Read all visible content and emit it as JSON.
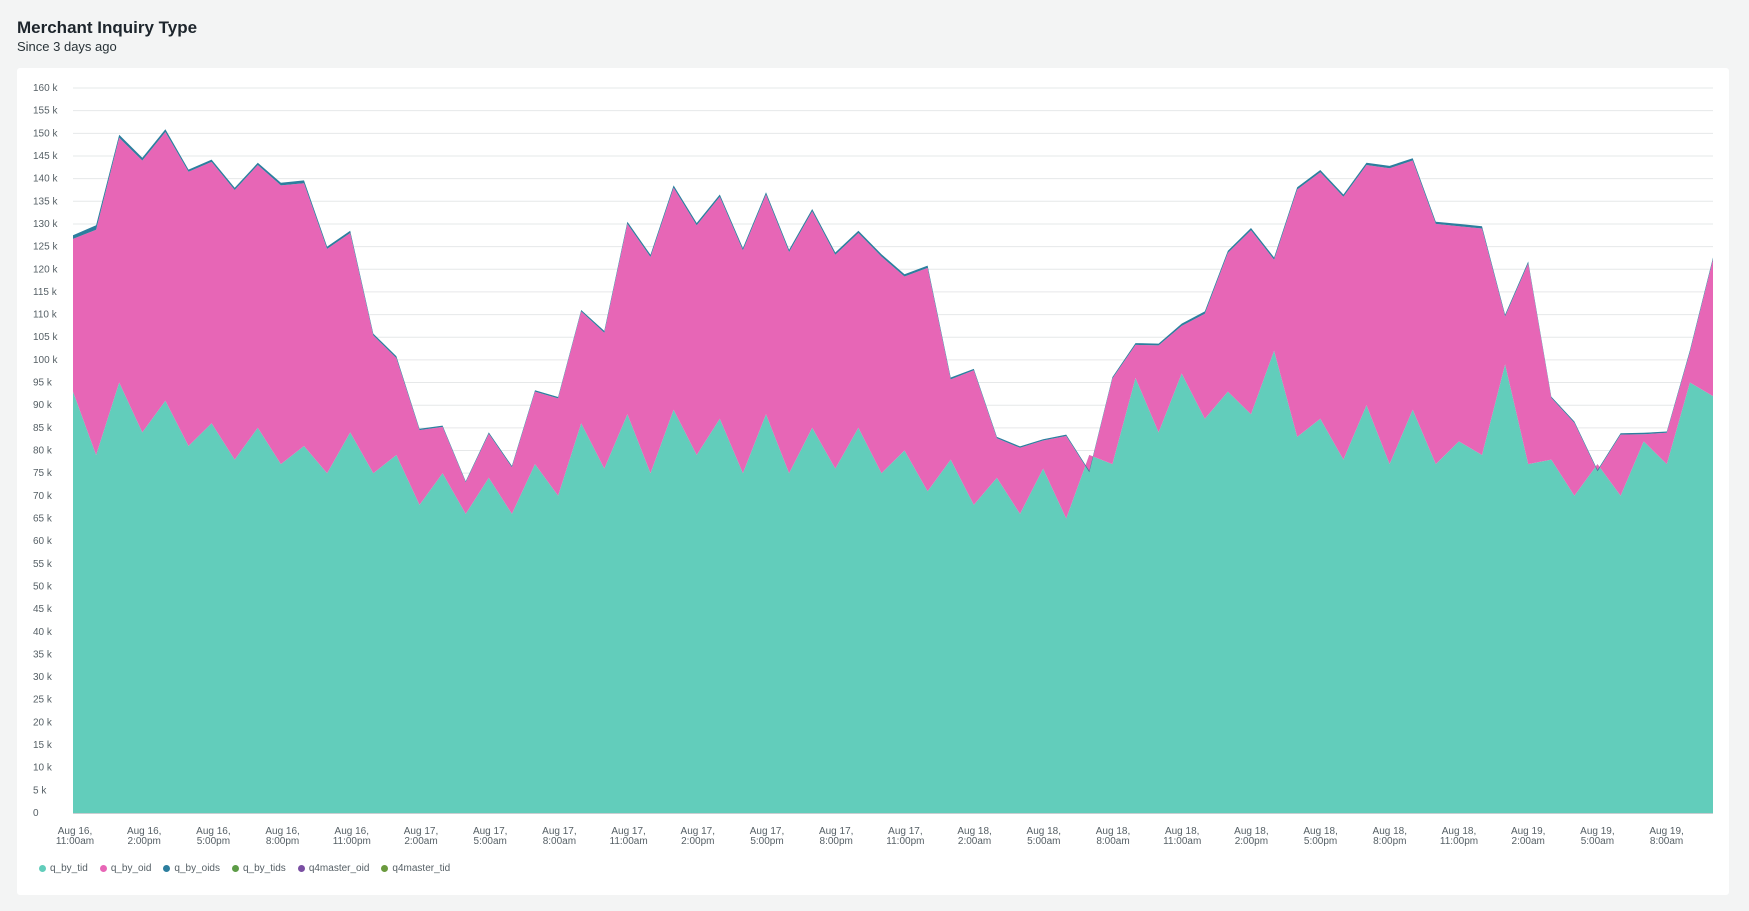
{
  "header": {
    "title": "Merchant Inquiry Type",
    "subtitle": "Since 3 days ago"
  },
  "chart_data": {
    "type": "area",
    "stacked": true,
    "title": "Merchant Inquiry Type",
    "subtitle": "Since 3 days ago",
    "xlabel": "",
    "ylabel": "",
    "ylim": [
      0,
      160000
    ],
    "y_ticks": [
      "0",
      "5 k",
      "10 k",
      "15 k",
      "20 k",
      "25 k",
      "30 k",
      "35 k",
      "40 k",
      "45 k",
      "50 k",
      "55 k",
      "60 k",
      "65 k",
      "70 k",
      "75 k",
      "80 k",
      "85 k",
      "90 k",
      "95 k",
      "100 k",
      "105 k",
      "110 k",
      "115 k",
      "120 k",
      "125 k",
      "130 k",
      "135 k",
      "140 k",
      "145 k",
      "150 k",
      "155 k",
      "160 k"
    ],
    "grid": true,
    "legend_position": "bottom-left",
    "x_ticks": [
      {
        "line1": "Aug 16,",
        "line2": "11:00am"
      },
      {
        "line1": "Aug 16,",
        "line2": "2:00pm"
      },
      {
        "line1": "Aug 16,",
        "line2": "5:00pm"
      },
      {
        "line1": "Aug 16,",
        "line2": "8:00pm"
      },
      {
        "line1": "Aug 16,",
        "line2": "11:00pm"
      },
      {
        "line1": "Aug 17,",
        "line2": "2:00am"
      },
      {
        "line1": "Aug 17,",
        "line2": "5:00am"
      },
      {
        "line1": "Aug 17,",
        "line2": "8:00am"
      },
      {
        "line1": "Aug 17,",
        "line2": "11:00am"
      },
      {
        "line1": "Aug 17,",
        "line2": "2:00pm"
      },
      {
        "line1": "Aug 17,",
        "line2": "5:00pm"
      },
      {
        "line1": "Aug 17,",
        "line2": "8:00pm"
      },
      {
        "line1": "Aug 17,",
        "line2": "11:00pm"
      },
      {
        "line1": "Aug 18,",
        "line2": "2:00am"
      },
      {
        "line1": "Aug 18,",
        "line2": "5:00am"
      },
      {
        "line1": "Aug 18,",
        "line2": "8:00am"
      },
      {
        "line1": "Aug 18,",
        "line2": "11:00am"
      },
      {
        "line1": "Aug 18,",
        "line2": "2:00pm"
      },
      {
        "line1": "Aug 18,",
        "line2": "5:00pm"
      },
      {
        "line1": "Aug 18,",
        "line2": "8:00pm"
      },
      {
        "line1": "Aug 18,",
        "line2": "11:00pm"
      },
      {
        "line1": "Aug 19,",
        "line2": "2:00am"
      },
      {
        "line1": "Aug 19,",
        "line2": "5:00am"
      },
      {
        "line1": "Aug 19,",
        "line2": "8:00am"
      }
    ],
    "series": [
      {
        "name": "q_by_tid",
        "color": "#62cdbb",
        "values": [
          93000,
          79000,
          95000,
          84000,
          91000,
          81000,
          86000,
          78000,
          85000,
          77000,
          81000,
          75000,
          84000,
          75000,
          79000,
          68000,
          75000,
          66000,
          74000,
          66000,
          77000,
          70000,
          86000,
          76000,
          88000,
          75000,
          89000,
          79000,
          87000,
          75000,
          88000,
          75000,
          85000,
          76000,
          85000,
          75000,
          80000,
          71000,
          78000,
          68000,
          74000,
          66000,
          76000,
          65000,
          79000,
          77000,
          96000,
          84000,
          97000,
          87000,
          93000,
          88000,
          102000,
          83000,
          87000,
          78000,
          90000,
          77000,
          89000,
          77000,
          82000,
          79000,
          99000,
          77000,
          78000,
          70000,
          77000,
          70000,
          82000,
          77000,
          95000,
          92000
        ]
      },
      {
        "name": "q_by_oid",
        "color": "#e766b6",
        "values": [
          33700,
          49700,
          54000,
          60000,
          59300,
          60500,
          57700,
          59500,
          58000,
          61500,
          58000,
          49500,
          44000,
          30400,
          21400,
          16500,
          10200,
          7000,
          9700,
          10300,
          16000,
          21500,
          24700,
          30000,
          42000,
          47700,
          49000,
          50700,
          49000,
          49200,
          48500,
          48800,
          47800,
          47200,
          43000,
          47800,
          38400,
          49300,
          17700,
          29700,
          8700,
          14600,
          6200,
          18200,
          -3800,
          18900,
          7300,
          19200,
          10500,
          23200,
          30600,
          40600,
          20100,
          54600,
          54400,
          58000,
          53000,
          65300,
          55000,
          53000,
          47500,
          50000,
          10600,
          44300,
          13600,
          16100,
          -1600,
          13500,
          1600,
          6900,
          6700,
          30200
        ]
      },
      {
        "name": "q_by_oids",
        "color": "#2c7e9e",
        "values": [
          800,
          1000,
          700,
          600,
          600,
          500,
          500,
          500,
          500,
          600,
          600,
          500,
          500,
          400,
          400,
          300,
          300,
          200,
          300,
          300,
          300,
          300,
          300,
          400,
          500,
          500,
          500,
          500,
          500,
          500,
          500,
          500,
          500,
          500,
          500,
          500,
          500,
          500,
          400,
          300,
          300,
          300,
          300,
          300,
          300,
          300,
          400,
          400,
          500,
          500,
          500,
          500,
          500,
          500,
          500,
          500,
          500,
          500,
          500,
          500,
          500,
          500,
          400,
          400,
          300,
          300,
          300,
          300,
          300,
          300,
          400,
          400
        ]
      },
      {
        "name": "q_by_tids",
        "color": "#5d9c47",
        "values": []
      },
      {
        "name": "q4master_oid",
        "color": "#7a4fa3",
        "values": []
      },
      {
        "name": "q4master_tid",
        "color": "#6a9a3e",
        "values": []
      }
    ]
  }
}
